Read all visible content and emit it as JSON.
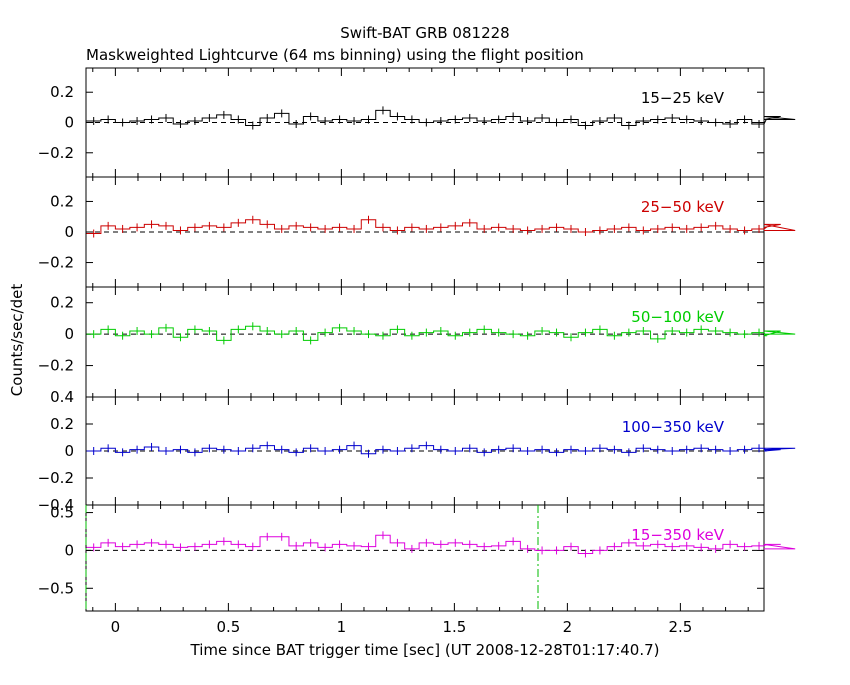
{
  "chart_data": {
    "type": "line",
    "title": "Swift-BAT GRB 081228",
    "subtitle": "Maskweighted Lightcurve (64 ms binning) using the flight position",
    "xlabel": "Time since BAT trigger time [sec] (UT 2008-12-28T01:17:40.7)",
    "ylabel": "Counts/sec/det",
    "xlim": [
      -0.13,
      2.87
    ],
    "x_ticks": [
      0,
      0.5,
      1,
      1.5,
      2,
      2.5
    ],
    "x_tick_labels": [
      "0",
      "0.5",
      "1",
      "1.5",
      "2",
      "2.5"
    ],
    "bin_width": 0.064,
    "bin_start": -0.128,
    "grid": false,
    "markers": [
      {
        "x": -0.13,
        "panel": 4,
        "color": "#00bb00"
      },
      {
        "x": 1.87,
        "panel": 4,
        "color": "#00bb00"
      }
    ],
    "panels": [
      {
        "name": "15-25 keV",
        "color": "#000000",
        "ylim": [
          -0.36,
          0.36
        ],
        "yticks": [
          -0.2,
          0,
          0.2
        ],
        "ytick_labels": [
          "-0.2",
          "0",
          "0.2"
        ],
        "values": [
          0.01,
          0.02,
          0.0,
          0.01,
          0.02,
          0.03,
          -0.01,
          0.01,
          0.03,
          0.05,
          0.02,
          -0.02,
          0.03,
          0.06,
          -0.01,
          0.04,
          0.01,
          0.02,
          0.01,
          0.02,
          0.08,
          0.04,
          0.02,
          0.0,
          0.01,
          0.02,
          0.03,
          0.01,
          0.02,
          0.04,
          0.01,
          0.03,
          0.0,
          0.02,
          -0.02,
          0.01,
          0.03,
          -0.02,
          0.01,
          0.02,
          0.03,
          0.02,
          0.01,
          0.0,
          -0.01,
          0.02,
          -0.01,
          0.02,
          0.04,
          0.02
        ]
      },
      {
        "name": "25-50 keV",
        "color": "#cc0000",
        "ylim": [
          -0.36,
          0.36
        ],
        "yticks": [
          -0.2,
          0,
          0.2
        ],
        "ytick_labels": [
          "-0.2",
          "0",
          "0.2"
        ],
        "values": [
          -0.01,
          0.04,
          0.02,
          0.03,
          0.05,
          0.04,
          0.01,
          0.03,
          0.04,
          0.03,
          0.06,
          0.08,
          0.05,
          0.02,
          0.04,
          0.03,
          0.02,
          0.03,
          0.02,
          0.08,
          0.03,
          0.01,
          0.03,
          0.02,
          0.03,
          0.04,
          0.06,
          0.02,
          0.03,
          0.02,
          0.01,
          0.02,
          0.03,
          0.02,
          0.0,
          0.01,
          0.02,
          0.03,
          0.01,
          0.02,
          0.03,
          0.02,
          0.03,
          0.04,
          0.02,
          0.01,
          0.02,
          0.03,
          0.05,
          0.01
        ]
      },
      {
        "name": "50-100 keV",
        "color": "#00cc00",
        "ylim": [
          -0.4,
          0.3
        ],
        "yticks": [
          -0.2,
          0,
          0.2
        ],
        "ytick_labels": [
          "-0.2",
          "0",
          "0.2"
        ],
        "values": [
          0.0,
          0.03,
          -0.01,
          0.02,
          0.0,
          0.04,
          -0.02,
          0.03,
          0.02,
          -0.04,
          0.03,
          0.05,
          0.02,
          0.0,
          0.02,
          -0.04,
          0.01,
          0.04,
          0.02,
          0.0,
          -0.01,
          0.03,
          -0.01,
          0.01,
          0.02,
          -0.01,
          0.01,
          0.03,
          0.01,
          0.0,
          -0.01,
          0.02,
          0.01,
          -0.02,
          0.01,
          0.03,
          -0.01,
          0.01,
          0.02,
          -0.03,
          0.02,
          0.01,
          0.03,
          0.02,
          0.01,
          0.0,
          0.01,
          -0.01,
          0.02,
          0.0
        ]
      },
      {
        "name": "100-350 keV",
        "color": "#0000cc",
        "ylim": [
          -0.4,
          0.4
        ],
        "yticks": [
          -0.4,
          -0.2,
          0,
          0.2,
          0.4
        ],
        "ytick_labels": [
          "-0.4",
          "-0.2",
          "0",
          "0.2",
          "0.4"
        ],
        "values": [
          0.0,
          0.02,
          -0.01,
          0.01,
          0.03,
          0.0,
          0.01,
          -0.01,
          0.02,
          0.01,
          0.0,
          0.02,
          0.04,
          0.01,
          -0.01,
          0.02,
          0.0,
          0.01,
          0.04,
          -0.02,
          0.01,
          0.0,
          0.02,
          0.04,
          0.01,
          0.0,
          0.02,
          -0.01,
          0.01,
          0.02,
          0.0,
          0.01,
          -0.01,
          0.01,
          0.0,
          0.02,
          0.01,
          -0.01,
          0.02,
          0.01,
          0.0,
          0.01,
          0.02,
          0.01,
          0.0,
          0.01,
          0.02,
          0.0,
          0.01,
          0.02
        ]
      },
      {
        "name": "15-350 keV",
        "color": "#dd00dd",
        "ylim": [
          -0.8,
          0.6
        ],
        "yticks": [
          -0.5,
          0,
          0.5
        ],
        "ytick_labels": [
          "-0.5",
          "0",
          "0.5"
        ],
        "values": [
          0.04,
          0.1,
          0.05,
          0.08,
          0.1,
          0.08,
          0.04,
          0.05,
          0.08,
          0.12,
          0.08,
          0.05,
          0.18,
          0.18,
          0.06,
          0.1,
          0.04,
          0.08,
          0.06,
          0.05,
          0.2,
          0.1,
          0.02,
          0.1,
          0.08,
          0.1,
          0.08,
          0.05,
          0.06,
          0.12,
          0.02,
          0.0,
          0.0,
          0.05,
          -0.04,
          0.0,
          0.05,
          0.1,
          0.06,
          0.08,
          0.05,
          0.06,
          0.04,
          0.02,
          0.08,
          0.05,
          0.06,
          0.08,
          0.08,
          0.02
        ]
      }
    ]
  }
}
